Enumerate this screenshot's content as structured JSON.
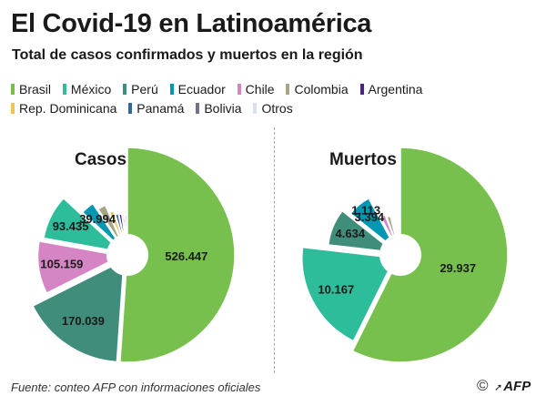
{
  "header": {
    "title": "El Covid-19 en Latinoamérica",
    "subtitle": "Total de casos confirmados y muertos en la región"
  },
  "legend": [
    {
      "name": "Brasil",
      "color": "#78c04d"
    },
    {
      "name": "México",
      "color": "#2dbd9a"
    },
    {
      "name": "Perú",
      "color": "#418d7b"
    },
    {
      "name": "Ecuador",
      "color": "#0097b2"
    },
    {
      "name": "Chile",
      "color": "#d685c4"
    },
    {
      "name": "Colombia",
      "color": "#a6a685"
    },
    {
      "name": "Argentina",
      "color": "#4a257c"
    },
    {
      "name": "Rep. Dominicana",
      "color": "#f0c25a"
    },
    {
      "name": "Panamá",
      "color": "#336699"
    },
    {
      "name": "Bolivia",
      "color": "#72728c"
    },
    {
      "name": "Otros",
      "color": "#d9e1ea"
    }
  ],
  "chart_data": [
    {
      "type": "pie",
      "title": "Casos",
      "categories": [
        "Brasil",
        "Perú",
        "Chile",
        "México",
        "Ecuador",
        "Colombia",
        "Rep. Dominicana",
        "Panamá",
        "Argentina",
        "Bolivia",
        "Otros"
      ],
      "values": [
        526447,
        170039,
        105159,
        93435,
        39994,
        28236,
        18040,
        14095,
        13228,
        9592,
        12000
      ],
      "labels": [
        "526.447",
        "170.039",
        "105.159",
        "93.435",
        "39.994",
        "",
        "",
        "",
        "",
        "",
        ""
      ]
    },
    {
      "type": "pie",
      "title": "Muertos",
      "categories": [
        "Brasil",
        "México",
        "Perú",
        "Ecuador",
        "Chile",
        "Colombia",
        "Rep. Dominicana",
        "Panamá",
        "Argentina",
        "Bolivia",
        "Otros"
      ],
      "values": [
        29937,
        10167,
        4634,
        3394,
        1113,
        915,
        502,
        352,
        480,
        310,
        400
      ],
      "labels": [
        "29.937",
        "10.167",
        "4.634",
        "3.394",
        "1.113",
        "",
        "",
        "",
        "",
        "",
        ""
      ]
    }
  ],
  "footer": {
    "source": "Fuente: conteo AFP con informaciones oficiales",
    "copyright": "©",
    "brand": "AFP"
  }
}
